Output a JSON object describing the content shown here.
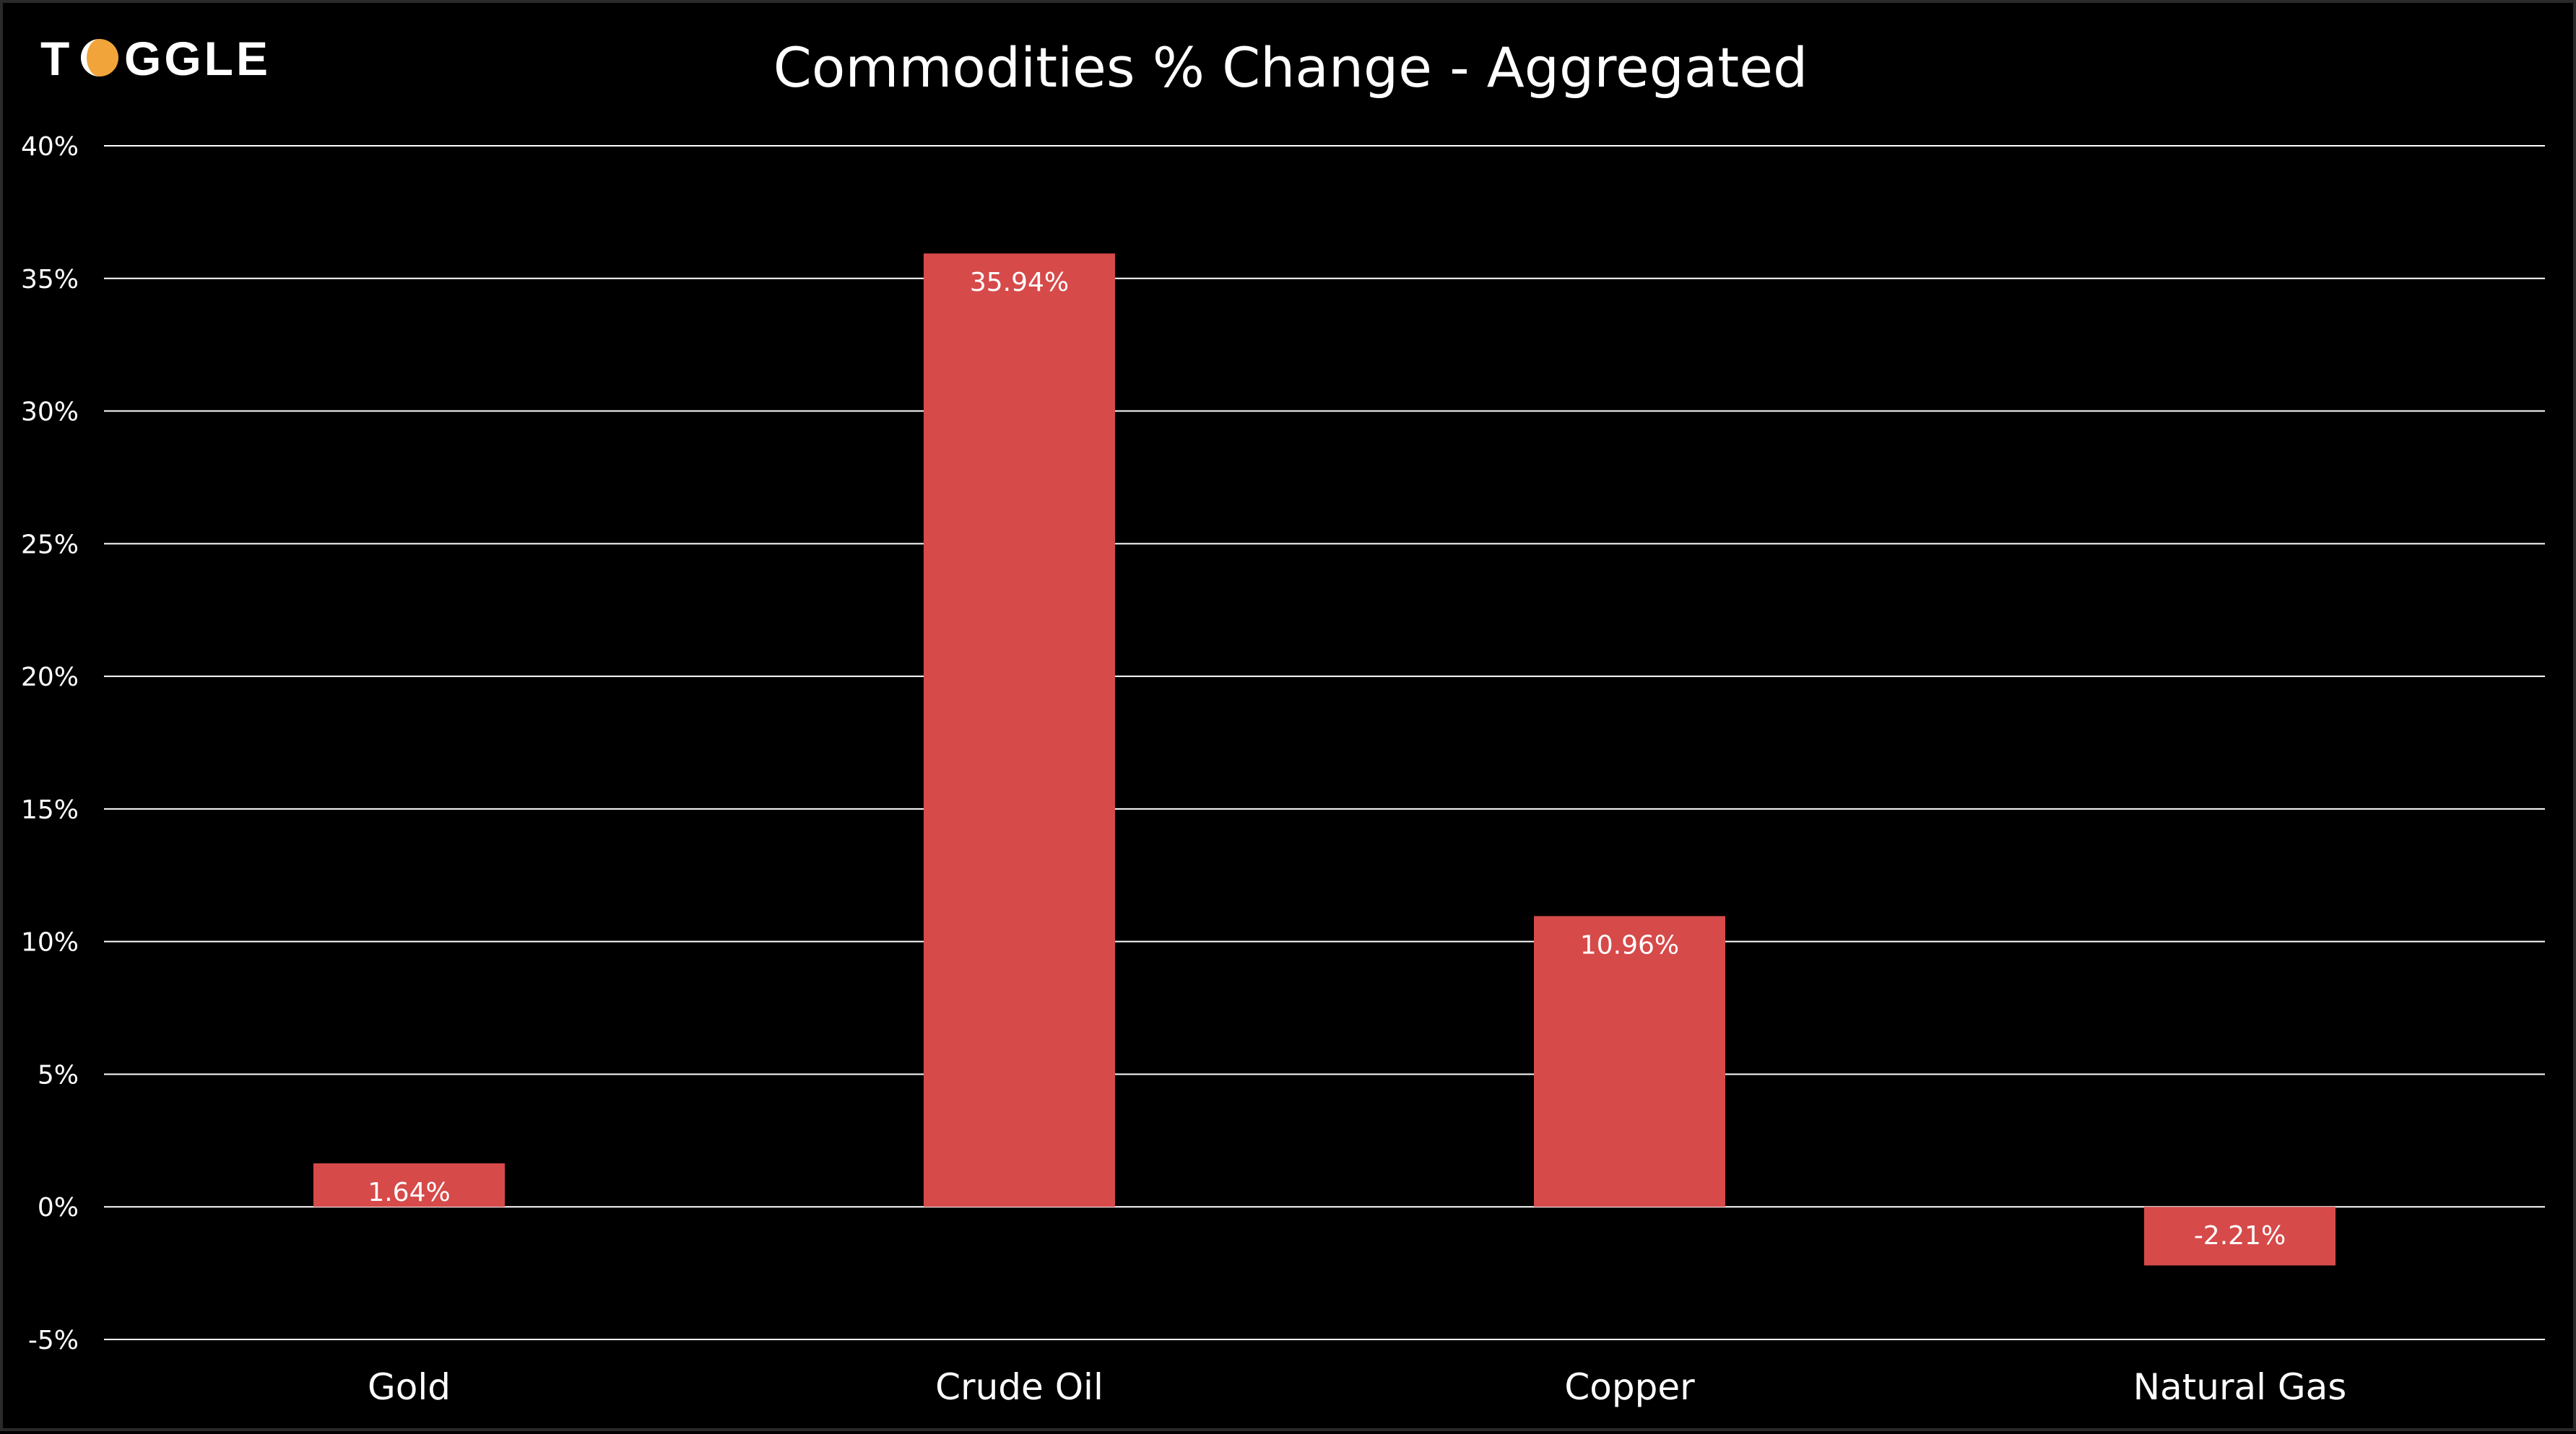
{
  "brand": {
    "name": "TOGGLE",
    "accent": "#F0A43A"
  },
  "colors": {
    "background": "#000000",
    "bar": "#D64A4A",
    "grid": "#FFFFFF",
    "text": "#FFFFFF"
  },
  "chart_data": {
    "type": "bar",
    "title": "Commodities % Change - Aggregated",
    "xlabel": "",
    "ylabel": "",
    "categories": [
      "Gold",
      "Crude Oil",
      "Copper",
      "Natural Gas"
    ],
    "values": [
      1.64,
      35.94,
      10.96,
      -2.21
    ],
    "data_labels": [
      "1.64%",
      "35.94%",
      "10.96%",
      "-2.21%"
    ],
    "ylim": [
      -5,
      40
    ],
    "yticks": [
      -5,
      0,
      5,
      10,
      15,
      20,
      25,
      30,
      35,
      40
    ],
    "ytick_labels": [
      "-5%",
      "0%",
      "5%",
      "10%",
      "15%",
      "20%",
      "25%",
      "30%",
      "35%",
      "40%"
    ],
    "grid": true,
    "legend": "none"
  }
}
